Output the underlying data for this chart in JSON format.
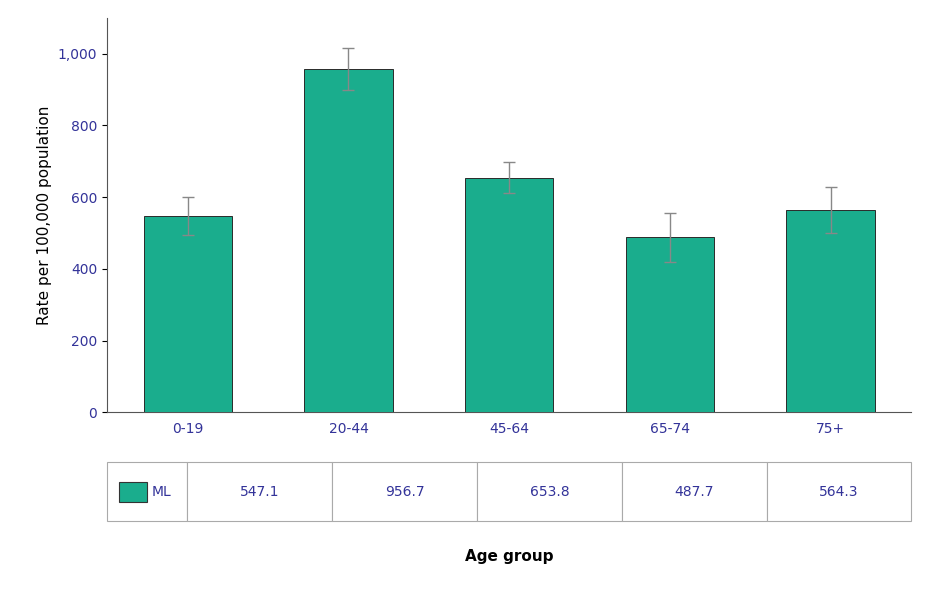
{
  "categories": [
    "0-19",
    "20-44",
    "45-64",
    "65-74",
    "75+"
  ],
  "values": [
    547.1,
    956.7,
    653.8,
    487.7,
    564.3
  ],
  "errors": [
    52,
    58,
    43,
    68,
    65
  ],
  "bar_color": "#1aad8d",
  "bar_edgecolor": "#2a2a2a",
  "ylabel": "Rate per 100,000 population",
  "xlabel": "Age group",
  "ylim": [
    0,
    1100
  ],
  "yticks": [
    0,
    200,
    400,
    600,
    800,
    1000
  ],
  "legend_label": "ML",
  "legend_color": "#1aad8d",
  "table_values": [
    "547.1",
    "956.7",
    "653.8",
    "487.7",
    "564.3"
  ],
  "bar_width": 0.55,
  "error_color": "#888888",
  "error_capsize": 4,
  "error_linewidth": 1.0,
  "background_color": "#ffffff",
  "text_color": "#333399",
  "table_edge_color": "#aaaaaa",
  "axis_label_color": "#000000"
}
